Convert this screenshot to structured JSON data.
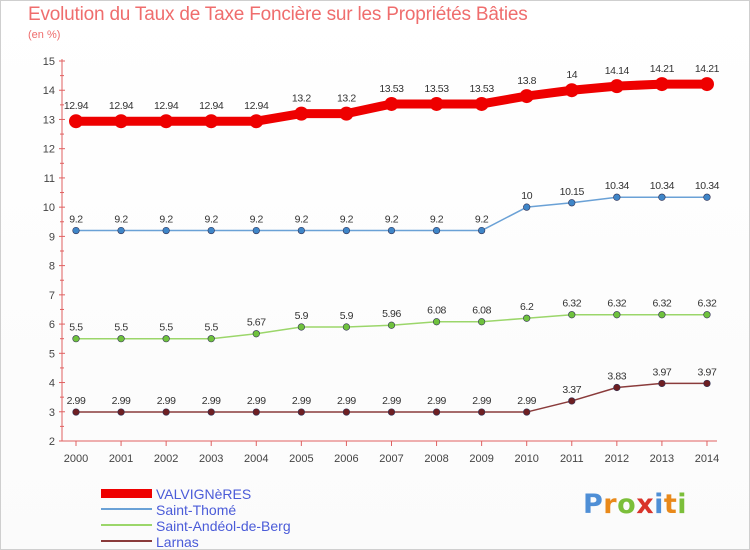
{
  "title": "Evolution du Taux de Taxe Foncière sur les Propriétés Bâties",
  "subtitle": "(en %)",
  "brand": {
    "name": "Proxiti",
    "letters": [
      {
        "ch": "P",
        "color": "#4f8fd6"
      },
      {
        "ch": "r",
        "color": "#e9891a"
      },
      {
        "ch": "o",
        "color": "#7cbf3a"
      },
      {
        "ch": "x",
        "color": "#d9342b"
      },
      {
        "ch": "i",
        "color": "#4f8fd6"
      },
      {
        "ch": "t",
        "color": "#e9891a"
      },
      {
        "ch": "i",
        "color": "#7cbf3a"
      }
    ]
  },
  "chart_data": {
    "type": "line",
    "title": "Evolution du Taux de Taxe Foncière sur les Propriétés Bâties",
    "subtitle": "(en %)",
    "x": [
      "2000",
      "2001",
      "2002",
      "2003",
      "2004",
      "2005",
      "2006",
      "2007",
      "2008",
      "2009",
      "2010",
      "2011",
      "2012",
      "2013",
      "2014"
    ],
    "ylim": [
      2,
      15
    ],
    "yticks": [
      2,
      3,
      4,
      5,
      6,
      7,
      8,
      9,
      10,
      11,
      12,
      13,
      14,
      15
    ],
    "grid": false,
    "legend_position": "bottom-left",
    "series": [
      {
        "name": "VALVIGNèRES",
        "color": "#ee0000",
        "marker_color": "#ee0000",
        "values": [
          12.94,
          12.94,
          12.94,
          12.94,
          12.94,
          13.2,
          13.2,
          13.53,
          13.53,
          13.53,
          13.8,
          14,
          14.14,
          14.21,
          14.21
        ],
        "labels": [
          "12.94",
          "12.94",
          "12.94",
          "12.94",
          "12.94",
          "13.2",
          "13.2",
          "13.53",
          "13.53",
          "13.53",
          "13.8",
          "14",
          "14.14",
          "14.21",
          "14.21"
        ],
        "emphasis": true
      },
      {
        "name": "Saint-Thomé",
        "color": "#6aa1d6",
        "marker_color": "#3f86c8",
        "values": [
          9.2,
          9.2,
          9.2,
          9.2,
          9.2,
          9.2,
          9.2,
          9.2,
          9.2,
          9.2,
          10,
          10.15,
          10.34,
          10.34,
          10.34
        ],
        "labels": [
          "9.2",
          "9.2",
          "9.2",
          "9.2",
          "9.2",
          "9.2",
          "9.2",
          "9.2",
          "9.2",
          "9.2",
          "10",
          "10.15",
          "10.34",
          "10.34",
          "10.34"
        ],
        "emphasis": false
      },
      {
        "name": "Saint-Andéol-de-Berg",
        "color": "#9bd66a",
        "marker_color": "#6fc23d",
        "values": [
          5.5,
          5.5,
          5.5,
          5.5,
          5.67,
          5.9,
          5.9,
          5.96,
          6.08,
          6.08,
          6.2,
          6.32,
          6.32,
          6.32,
          6.32
        ],
        "labels": [
          "5.5",
          "5.5",
          "5.5",
          "5.5",
          "5.67",
          "5.9",
          "5.9",
          "5.96",
          "6.08",
          "6.08",
          "6.2",
          "6.32",
          "6.32",
          "6.32",
          "6.32"
        ],
        "emphasis": false
      },
      {
        "name": "Larnas",
        "color": "#8a3b3b",
        "marker_color": "#6e1f22",
        "values": [
          2.99,
          2.99,
          2.99,
          2.99,
          2.99,
          2.99,
          2.99,
          2.99,
          2.99,
          2.99,
          2.99,
          3.37,
          3.83,
          3.97,
          3.97
        ],
        "labels": [
          "2.99",
          "2.99",
          "2.99",
          "2.99",
          "2.99",
          "2.99",
          "2.99",
          "2.99",
          "2.99",
          "2.99",
          "2.99",
          "3.37",
          "3.83",
          "3.97",
          "3.97"
        ],
        "emphasis": false
      }
    ]
  }
}
